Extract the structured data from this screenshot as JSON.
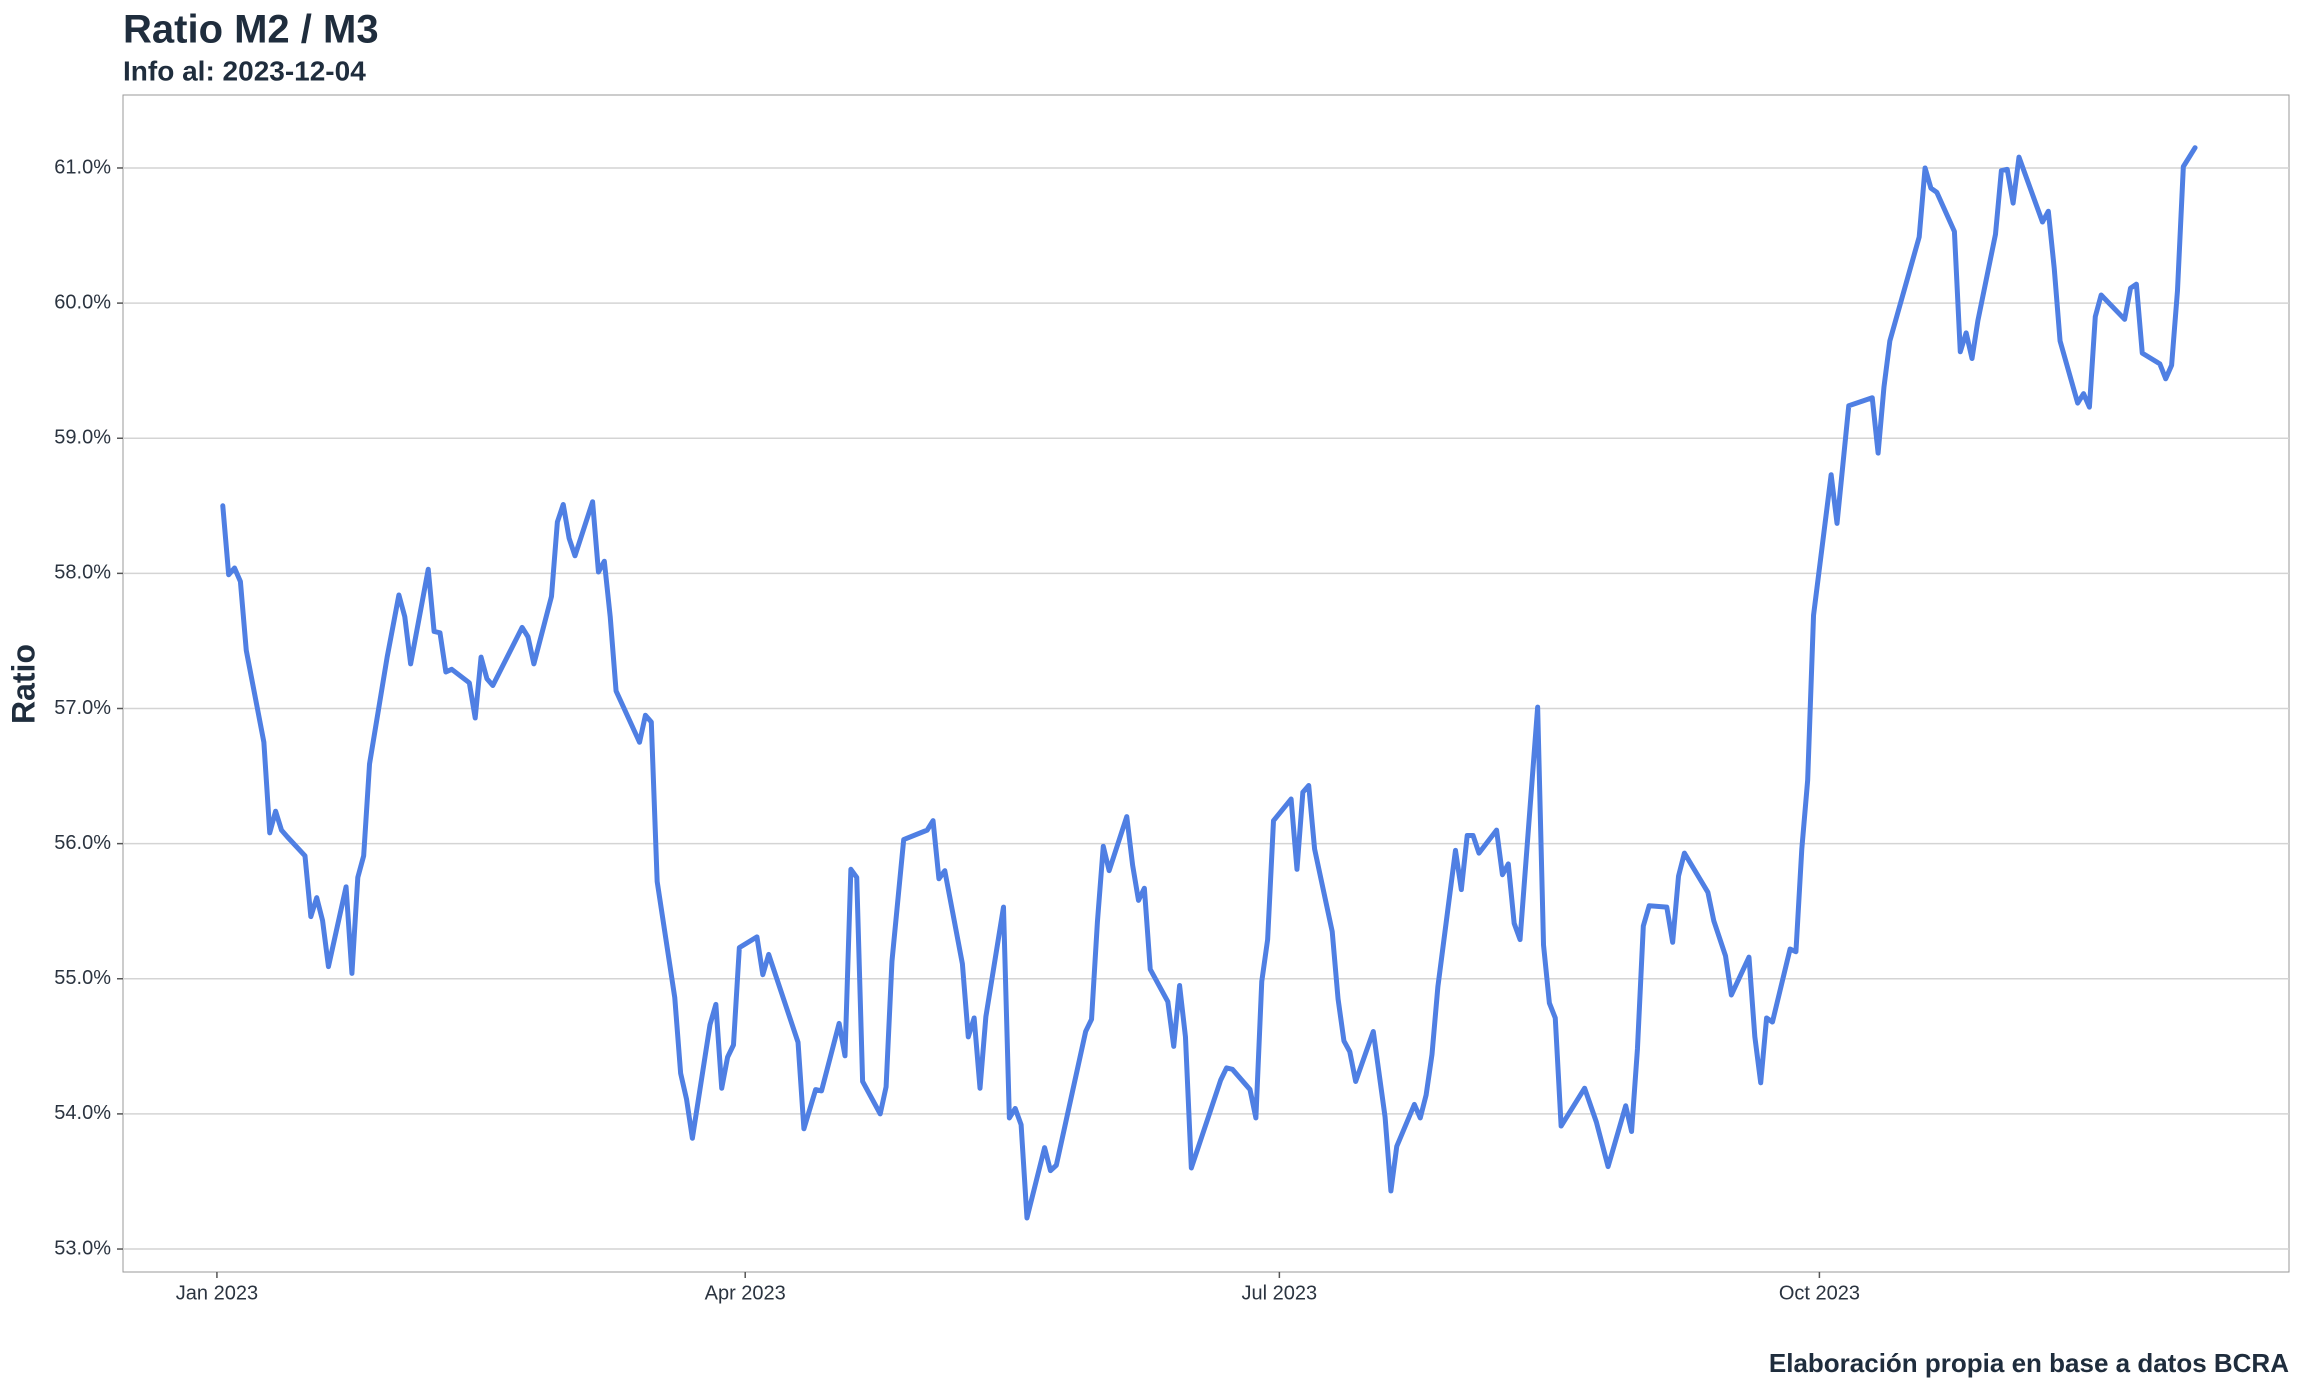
{
  "chart_data": {
    "type": "line",
    "title": "Ratio M2 / M3",
    "subtitle": "Info al: 2023-12-04",
    "y_label": "Ratio",
    "caption": "Elaboración propia en base a datos BCRA",
    "xlim": [
      "2022-12-16",
      "2023-12-20"
    ],
    "xticks": [
      {
        "value": "2023-01-01",
        "label": "Jan 2023"
      },
      {
        "value": "2023-04-01",
        "label": "Apr 2023"
      },
      {
        "value": "2023-07-01",
        "label": "Jul 2023"
      },
      {
        "value": "2023-10-01",
        "label": "Oct 2023"
      }
    ],
    "ylim": [
      52.83,
      61.54
    ],
    "yticks": [
      {
        "value": 53,
        "label": "53.0%"
      },
      {
        "value": 54,
        "label": "54.0%"
      },
      {
        "value": 55,
        "label": "55.0%"
      },
      {
        "value": 56,
        "label": "56.0%"
      },
      {
        "value": 57,
        "label": "57.0%"
      },
      {
        "value": 58,
        "label": "58.0%"
      },
      {
        "value": 59,
        "label": "59.0%"
      },
      {
        "value": 60,
        "label": "60.0%"
      },
      {
        "value": 61,
        "label": "61.0%"
      }
    ],
    "grid": true,
    "x": [
      "2023-01-02",
      "2023-01-03",
      "2023-01-04",
      "2023-01-05",
      "2023-01-06",
      "2023-01-09",
      "2023-01-10",
      "2023-01-11",
      "2023-01-12",
      "2023-01-13",
      "2023-01-16",
      "2023-01-17",
      "2023-01-18",
      "2023-01-19",
      "2023-01-20",
      "2023-01-23",
      "2023-01-24",
      "2023-01-25",
      "2023-01-26",
      "2023-01-27",
      "2023-01-30",
      "2023-02-01",
      "2023-02-02",
      "2023-02-03",
      "2023-02-06",
      "2023-02-07",
      "2023-02-08",
      "2023-02-09",
      "2023-02-10",
      "2023-02-13",
      "2023-02-14",
      "2023-02-15",
      "2023-02-16",
      "2023-02-17",
      "2023-02-22",
      "2023-02-23",
      "2023-02-24",
      "2023-02-27",
      "2023-02-28",
      "2023-03-01",
      "2023-03-02",
      "2023-03-03",
      "2023-03-06",
      "2023-03-07",
      "2023-03-08",
      "2023-03-09",
      "2023-03-10",
      "2023-03-14",
      "2023-03-15",
      "2023-03-16",
      "2023-03-17",
      "2023-03-20",
      "2023-03-21",
      "2023-03-22",
      "2023-03-23",
      "2023-03-26",
      "2023-03-27",
      "2023-03-28",
      "2023-03-29",
      "2023-03-30",
      "2023-03-31",
      "2023-04-03",
      "2023-04-04",
      "2023-04-05",
      "2023-04-10",
      "2023-04-11",
      "2023-04-13",
      "2023-04-14",
      "2023-04-17",
      "2023-04-18",
      "2023-04-19",
      "2023-04-20",
      "2023-04-21",
      "2023-04-24",
      "2023-04-25",
      "2023-04-26",
      "2023-04-28",
      "2023-05-02",
      "2023-05-03",
      "2023-05-04",
      "2023-05-05",
      "2023-05-08",
      "2023-05-09",
      "2023-05-10",
      "2023-05-11",
      "2023-05-12",
      "2023-05-15",
      "2023-05-16",
      "2023-05-17",
      "2023-05-18",
      "2023-05-19",
      "2023-05-22",
      "2023-05-23",
      "2023-05-24",
      "2023-05-29",
      "2023-05-30",
      "2023-05-31",
      "2023-06-01",
      "2023-06-02",
      "2023-06-05",
      "2023-06-06",
      "2023-06-07",
      "2023-06-08",
      "2023-06-09",
      "2023-06-12",
      "2023-06-13",
      "2023-06-14",
      "2023-06-15",
      "2023-06-16",
      "2023-06-21",
      "2023-06-22",
      "2023-06-23",
      "2023-06-26",
      "2023-06-27",
      "2023-06-28",
      "2023-06-29",
      "2023-06-30",
      "2023-07-03",
      "2023-07-04",
      "2023-07-05",
      "2023-07-06",
      "2023-07-07",
      "2023-07-10",
      "2023-07-11",
      "2023-07-12",
      "2023-07-13",
      "2023-07-14",
      "2023-07-17",
      "2023-07-19",
      "2023-07-20",
      "2023-07-21",
      "2023-07-24",
      "2023-07-25",
      "2023-07-26",
      "2023-07-27",
      "2023-07-28",
      "2023-07-31",
      "2023-08-01",
      "2023-08-02",
      "2023-08-03",
      "2023-08-04",
      "2023-08-07",
      "2023-08-08",
      "2023-08-09",
      "2023-08-10",
      "2023-08-11",
      "2023-08-14",
      "2023-08-15",
      "2023-08-16",
      "2023-08-17",
      "2023-08-18",
      "2023-08-22",
      "2023-08-24",
      "2023-08-26",
      "2023-08-29",
      "2023-08-30",
      "2023-08-31",
      "2023-09-01",
      "2023-09-02",
      "2023-09-05",
      "2023-09-06",
      "2023-09-07",
      "2023-09-08",
      "2023-09-12",
      "2023-09-13",
      "2023-09-15",
      "2023-09-16",
      "2023-09-19",
      "2023-09-20",
      "2023-09-21",
      "2023-09-22",
      "2023-09-23",
      "2023-09-26",
      "2023-09-27",
      "2023-09-28",
      "2023-09-29",
      "2023-09-30",
      "2023-10-03",
      "2023-10-04",
      "2023-10-06",
      "2023-10-10",
      "2023-10-11",
      "2023-10-12",
      "2023-10-13",
      "2023-10-18",
      "2023-10-19",
      "2023-10-20",
      "2023-10-21",
      "2023-10-24",
      "2023-10-25",
      "2023-10-26",
      "2023-10-27",
      "2023-10-28",
      "2023-10-31",
      "2023-11-01",
      "2023-11-02",
      "2023-11-03",
      "2023-11-04",
      "2023-11-08",
      "2023-11-09",
      "2023-11-10",
      "2023-11-11",
      "2023-11-14",
      "2023-11-15",
      "2023-11-16",
      "2023-11-17",
      "2023-11-18",
      "2023-11-22",
      "2023-11-23",
      "2023-11-24",
      "2023-11-25",
      "2023-11-28",
      "2023-11-29",
      "2023-11-30",
      "2023-12-01",
      "2023-12-02",
      "2023-12-04"
    ],
    "series": [
      {
        "color": "#4f7fe3",
        "values": [
          58.5,
          57.99,
          58.04,
          57.94,
          57.43,
          56.75,
          56.08,
          56.24,
          56.1,
          56.05,
          55.91,
          55.46,
          55.6,
          55.43,
          55.09,
          55.68,
          55.04,
          55.75,
          55.91,
          56.59,
          57.38,
          57.84,
          57.68,
          57.33,
          58.03,
          57.57,
          57.56,
          57.27,
          57.29,
          57.19,
          56.93,
          57.38,
          57.22,
          57.17,
          57.6,
          57.53,
          57.33,
          57.83,
          58.38,
          58.51,
          58.26,
          58.13,
          58.53,
          58.01,
          58.09,
          57.68,
          57.13,
          56.75,
          56.95,
          56.9,
          55.72,
          54.86,
          54.3,
          54.11,
          53.82,
          54.66,
          54.81,
          54.19,
          54.42,
          54.51,
          55.23,
          55.31,
          55.03,
          55.18,
          54.53,
          53.89,
          54.18,
          54.17,
          54.67,
          54.43,
          55.81,
          55.75,
          54.24,
          54.0,
          54.2,
          55.13,
          56.03,
          56.1,
          56.17,
          55.74,
          55.8,
          55.11,
          54.57,
          54.71,
          54.19,
          54.72,
          55.53,
          53.97,
          54.04,
          53.92,
          53.23,
          53.75,
          53.58,
          53.62,
          54.61,
          54.7,
          55.42,
          55.98,
          55.8,
          56.2,
          55.84,
          55.58,
          55.67,
          55.07,
          54.83,
          54.5,
          54.95,
          54.57,
          53.6,
          54.25,
          54.34,
          54.33,
          54.18,
          53.97,
          54.98,
          55.29,
          56.17,
          56.33,
          55.81,
          56.38,
          56.43,
          55.96,
          55.35,
          54.85,
          54.54,
          54.46,
          54.24,
          54.61,
          53.98,
          53.43,
          53.76,
          54.07,
          53.97,
          54.14,
          54.44,
          54.94,
          55.95,
          55.66,
          56.06,
          56.06,
          55.93,
          56.1,
          55.77,
          55.85,
          55.41,
          55.29,
          57.01,
          55.25,
          54.82,
          54.71,
          53.91,
          54.19,
          53.94,
          53.61,
          54.06,
          53.87,
          54.48,
          55.39,
          55.54,
          55.53,
          55.27,
          55.76,
          55.93,
          55.64,
          55.43,
          55.17,
          54.88,
          55.16,
          54.57,
          54.23,
          54.71,
          54.68,
          55.22,
          55.2,
          55.96,
          56.47,
          57.69,
          58.73,
          58.37,
          59.24,
          59.3,
          58.89,
          59.38,
          59.72,
          60.49,
          61.0,
          60.85,
          60.82,
          60.53,
          59.64,
          59.78,
          59.59,
          59.87,
          60.51,
          60.98,
          60.99,
          60.74,
          61.08,
          60.6,
          60.68,
          60.26,
          59.72,
          59.26,
          59.33,
          59.23,
          59.9,
          60.06,
          59.88,
          60.11,
          60.14,
          59.63,
          59.55,
          59.44,
          59.54,
          60.09,
          61.01,
          61.15
        ]
      }
    ]
  }
}
